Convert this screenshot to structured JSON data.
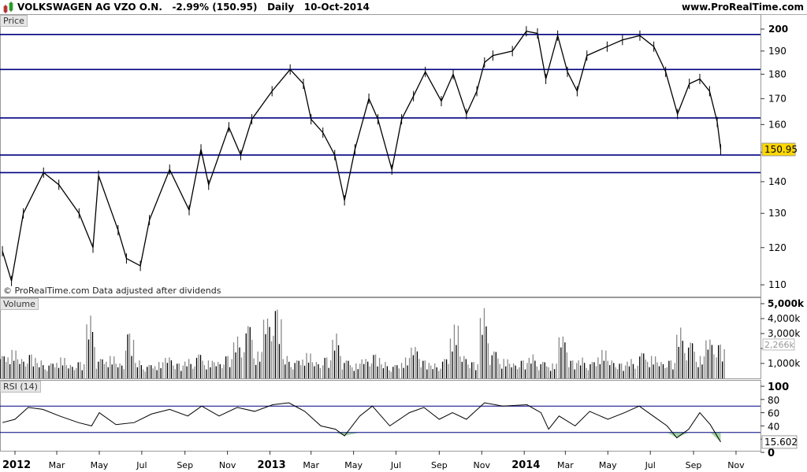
{
  "header": {
    "instrument": "VOLKSWAGEN AG VZO O.N.",
    "change": "-2.99% (150.95)",
    "period": "Daily",
    "date": "10-Oct-2014",
    "site": "www.ProRealTime.com"
  },
  "credit": "© ProRealTime.com  Data adjusted after dividends",
  "colors": {
    "price": "#000000",
    "hlines": "#000080",
    "last_badge": "#ffd700",
    "rsi_fill": "#8fc98f",
    "volume_up": "#888888",
    "volume_down": "#000000"
  },
  "chart_data": [
    {
      "type": "line",
      "panel_label": "Price",
      "scale": "log",
      "ylim": [
        108,
        203
      ],
      "yticks": [
        110,
        120,
        130,
        140,
        150,
        160,
        170,
        180,
        190,
        200
      ],
      "ytick_labels": [
        "110",
        "120",
        "130",
        "140",
        "",
        "160",
        "170",
        "180",
        "190",
        "200"
      ],
      "last_value": "150.95",
      "horizontal_lines": [
        197.5,
        182,
        162.5,
        149,
        143
      ],
      "x": [
        "2011-12-14",
        "2011-12-27",
        "2012-01-13",
        "2012-02-11",
        "2012-03-04",
        "2012-04-02",
        "2012-04-22",
        "2012-04-30",
        "2012-05-28",
        "2012-06-09",
        "2012-06-29",
        "2012-07-12",
        "2012-08-10",
        "2012-09-07",
        "2012-09-24",
        "2012-10-05",
        "2012-11-03",
        "2012-11-20",
        "2012-12-06",
        "2013-01-04",
        "2013-01-30",
        "2013-02-18",
        "2013-03-01",
        "2013-03-18",
        "2013-04-04",
        "2013-04-18",
        "2013-05-03",
        "2013-05-23",
        "2013-06-05",
        "2013-06-25",
        "2013-07-09",
        "2013-07-26",
        "2013-08-12",
        "2013-09-04",
        "2013-09-21",
        "2013-10-10",
        "2013-10-25",
        "2013-11-05",
        "2013-11-17",
        "2013-12-15",
        "2014-01-04",
        "2014-01-20",
        "2014-02-01",
        "2014-02-18",
        "2014-03-04",
        "2014-03-18",
        "2014-04-01",
        "2014-04-30",
        "2014-05-22",
        "2014-06-16",
        "2014-07-06",
        "2014-07-23",
        "2014-08-09",
        "2014-08-26",
        "2014-09-10",
        "2014-09-24",
        "2014-10-05",
        "2014-10-10"
      ],
      "y": [
        119,
        111,
        130,
        143,
        139,
        130,
        120,
        142,
        125,
        117,
        115,
        128,
        144,
        131,
        151,
        139,
        159,
        149,
        162,
        173,
        182,
        176,
        162,
        157,
        149,
        134,
        151,
        170,
        162,
        144,
        162,
        171,
        181,
        169,
        180,
        164,
        173,
        185,
        188,
        190,
        199,
        198,
        178,
        197,
        181,
        173,
        188,
        192,
        195,
        197,
        192,
        181,
        164,
        176,
        178,
        173,
        161,
        150.95
      ]
    },
    {
      "type": "bar",
      "panel_label": "Volume",
      "ylim": [
        0,
        5000
      ],
      "yticks": [
        1000,
        2000,
        3000,
        4000,
        5000
      ],
      "ytick_labels": [
        "1,000k",
        "",
        "3,000k",
        "4,000k",
        "5,000k"
      ],
      "last_value": "2,266k",
      "start": "2011-12-14",
      "end": "2014-10-10",
      "values": [
        1500,
        1900,
        1300,
        1600,
        1200,
        1000,
        1400,
        900,
        1100,
        4200,
        1300,
        1500,
        1000,
        3000,
        1200,
        900,
        1100,
        1400,
        1000,
        1300,
        1600,
        1200,
        1100,
        1500,
        2800,
        3500,
        1800,
        4000,
        4600,
        1500,
        1200,
        1700,
        1100,
        1400,
        3000,
        1200,
        1000,
        1300,
        1600,
        1100,
        900,
        1400,
        2100,
        1200,
        1000,
        1300,
        3600,
        1500,
        1100,
        4700,
        1800,
        1300,
        1000,
        1200,
        1600,
        1100,
        1000,
        2800,
        1200,
        1400,
        1100,
        1900,
        1200,
        1000,
        1300,
        1700,
        1500,
        1100,
        1200,
        3400,
        2400,
        1500,
        2600,
        2266
      ]
    },
    {
      "type": "line",
      "panel_label": "RSI (14)",
      "ylim": [
        0,
        100
      ],
      "yticks": [
        0,
        20,
        40,
        60,
        80,
        100
      ],
      "ytick_labels": [
        "0",
        "",
        "40",
        "60",
        "80",
        "100"
      ],
      "levels": [
        30,
        70
      ],
      "last_value": "15.602",
      "x": [
        "2011-12-14",
        "2012-01-01",
        "2012-01-20",
        "2012-02-10",
        "2012-03-05",
        "2012-04-01",
        "2012-04-20",
        "2012-05-01",
        "2012-05-25",
        "2012-06-20",
        "2012-07-15",
        "2012-08-10",
        "2012-09-05",
        "2012-09-25",
        "2012-10-20",
        "2012-11-15",
        "2012-12-10",
        "2013-01-05",
        "2013-01-28",
        "2013-02-20",
        "2013-03-15",
        "2013-04-05",
        "2013-04-18",
        "2013-05-10",
        "2013-05-28",
        "2013-06-22",
        "2013-07-20",
        "2013-08-10",
        "2013-09-01",
        "2013-09-20",
        "2013-10-10",
        "2013-11-05",
        "2013-12-01",
        "2014-01-05",
        "2014-01-25",
        "2014-02-05",
        "2014-02-20",
        "2014-03-15",
        "2014-04-05",
        "2014-05-01",
        "2014-05-25",
        "2014-06-15",
        "2014-07-05",
        "2014-07-25",
        "2014-08-08",
        "2014-08-25",
        "2014-09-10",
        "2014-09-25",
        "2014-10-10"
      ],
      "y": [
        45,
        50,
        68,
        65,
        55,
        45,
        40,
        60,
        42,
        45,
        58,
        65,
        55,
        70,
        55,
        68,
        62,
        72,
        75,
        62,
        40,
        35,
        25,
        55,
        70,
        40,
        60,
        68,
        50,
        60,
        50,
        75,
        70,
        72,
        60,
        35,
        55,
        40,
        62,
        50,
        60,
        70,
        55,
        40,
        22,
        35,
        60,
        42,
        15.602
      ]
    }
  ],
  "xaxis": {
    "ticks": [
      {
        "date": "2012-01-01",
        "label": "2012",
        "major": true
      },
      {
        "date": "2012-03-01",
        "label": "Mar"
      },
      {
        "date": "2012-05-01",
        "label": "May"
      },
      {
        "date": "2012-07-01",
        "label": "Jul"
      },
      {
        "date": "2012-09-01",
        "label": "Sep"
      },
      {
        "date": "2012-11-01",
        "label": "Nov"
      },
      {
        "date": "2013-01-01",
        "label": "2013",
        "major": true
      },
      {
        "date": "2013-03-01",
        "label": "Mar"
      },
      {
        "date": "2013-05-01",
        "label": "May"
      },
      {
        "date": "2013-07-01",
        "label": "Jul"
      },
      {
        "date": "2013-09-01",
        "label": "Sep"
      },
      {
        "date": "2013-11-01",
        "label": "Nov"
      },
      {
        "date": "2014-01-01",
        "label": "2014",
        "major": true
      },
      {
        "date": "2014-03-01",
        "label": "Mar"
      },
      {
        "date": "2014-05-01",
        "label": "May"
      },
      {
        "date": "2014-07-01",
        "label": "Jul"
      },
      {
        "date": "2014-09-01",
        "label": "Sep"
      },
      {
        "date": "2014-11-01",
        "label": "Nov"
      }
    ]
  }
}
